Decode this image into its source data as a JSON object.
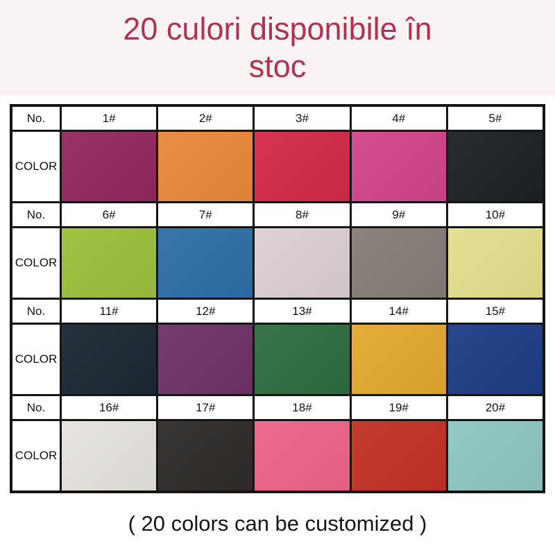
{
  "header": {
    "title_lines": [
      "20 culori disponibile în",
      "stoc"
    ],
    "title_color": "#b03250"
  },
  "table": {
    "no_header_label": "No.",
    "color_header_label": "COLOR",
    "border_color": "#141414",
    "groups": [
      {
        "labels": [
          "1#",
          "2#",
          "3#",
          "4#",
          "5#"
        ],
        "colors": [
          "#93275f",
          "#e8883d",
          "#d02b47",
          "#d2448e",
          "#1c2125"
        ]
      },
      {
        "labels": [
          "6#",
          "7#",
          "8#",
          "9#",
          "10#"
        ],
        "colors": [
          "#9dbf3b",
          "#2d6ea7",
          "#dccfd4",
          "#857e76",
          "#e3de8c"
        ]
      },
      {
        "labels": [
          "11#",
          "12#",
          "13#",
          "14#",
          "15#"
        ],
        "colors": [
          "#1c2733",
          "#6e3268",
          "#2f6c3f",
          "#e3a82e",
          "#1e3d85"
        ]
      },
      {
        "labels": [
          "16#",
          "17#",
          "18#",
          "19#",
          "20#"
        ],
        "colors": [
          "#e6e3dd",
          "#2e2b29",
          "#ee6488",
          "#c23222",
          "#8ec7c0"
        ]
      }
    ]
  },
  "footer": {
    "text": "( 20 colors can be customized )"
  }
}
